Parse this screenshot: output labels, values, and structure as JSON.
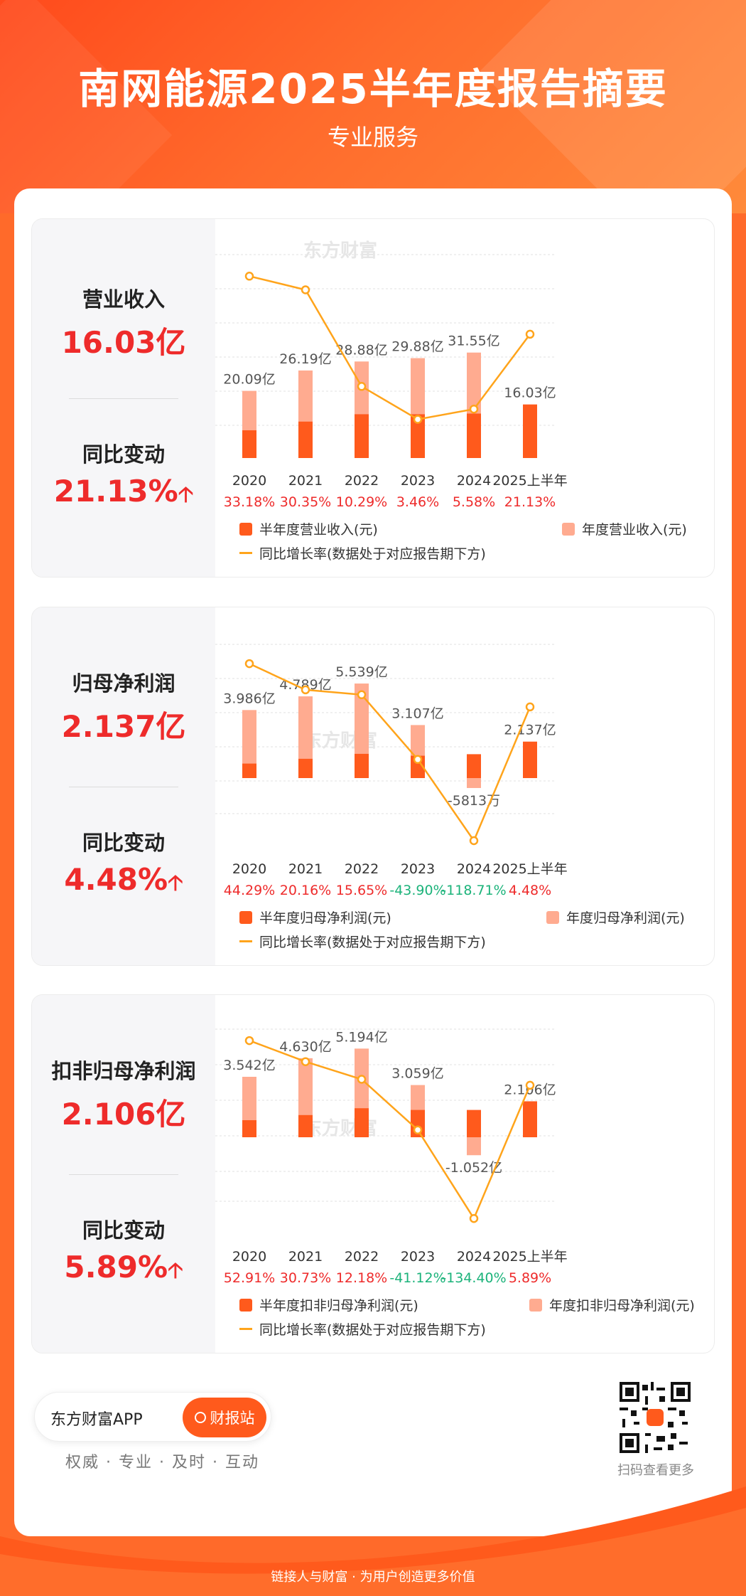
{
  "header": {
    "title": "南网能源2025半年度报告摘要",
    "subtitle": "专业服务"
  },
  "watermark": "东方财富",
  "panels": [
    {
      "metric_label": "营业收入",
      "metric_value": "16.03亿",
      "change_label": "同比变动",
      "change_value": "21.13%",
      "legend": {
        "half": "半年度营业收入(元)",
        "annual": "年度营业收入(元)",
        "line": "同比增长率(数据处于对应报告期下方)"
      }
    },
    {
      "metric_label": "归母净利润",
      "metric_value": "2.137亿",
      "change_label": "同比变动",
      "change_value": "4.48%",
      "legend": {
        "half": "半年度归母净利润(元)",
        "annual": "年度归母净利润(元)",
        "line": "同比增长率(数据处于对应报告期下方)"
      }
    },
    {
      "metric_label": "扣非归母净利润",
      "metric_value": "2.106亿",
      "change_label": "同比变动",
      "change_value": "5.89%",
      "legend": {
        "half": "半年度扣非归母净利润(元)",
        "annual": "年度扣非归母净利润(元)",
        "line": "同比增长率(数据处于对应报告期下方)"
      }
    }
  ],
  "chart_data": [
    {
      "type": "bar",
      "categories": [
        "2020",
        "2021",
        "2022",
        "2023",
        "2024",
        "2025上半年"
      ],
      "annual_values": [
        20.09,
        26.19,
        28.88,
        29.88,
        31.55,
        null
      ],
      "half_values": [
        8.3,
        10.9,
        13.1,
        13.1,
        13.3,
        16.03
      ],
      "annual_labels": [
        "20.09亿",
        "26.19亿",
        "28.88亿",
        "29.88亿",
        "31.55亿",
        "16.03亿"
      ],
      "growth": [
        33.18,
        30.35,
        10.29,
        3.46,
        5.58,
        21.13
      ],
      "growth_labels": [
        "33.18%",
        "30.35%",
        "10.29%",
        "3.46%",
        "5.58%",
        "21.13%"
      ],
      "colors": {
        "half": "#ff5a1c",
        "annual": "#ffab90",
        "line": "#ffa41b",
        "pos": "#ee2b2b",
        "neg": "#1bb37a"
      }
    },
    {
      "type": "bar",
      "categories": [
        "2020",
        "2021",
        "2022",
        "2023",
        "2024",
        "2025上半年"
      ],
      "annual_values": [
        3.986,
        4.789,
        5.539,
        3.107,
        -0.5813,
        null
      ],
      "half_values": [
        0.85,
        1.13,
        1.42,
        1.31,
        1.4,
        2.137
      ],
      "annual_labels": [
        "3.986亿",
        "4.789亿",
        "5.539亿",
        "3.107亿",
        "-5813万",
        "2.137亿"
      ],
      "growth": [
        44.29,
        20.16,
        15.65,
        -43.9,
        -118.71,
        4.48
      ],
      "growth_labels": [
        "44.29%",
        "20.16%",
        "15.65%",
        "-43.90%",
        "-118.71%",
        "4.48%"
      ],
      "colors": {
        "half": "#ff5a1c",
        "annual": "#ffab90",
        "line": "#ffa41b",
        "pos": "#ee2b2b",
        "neg": "#1bb37a"
      }
    },
    {
      "type": "bar",
      "categories": [
        "2020",
        "2021",
        "2022",
        "2023",
        "2024",
        "2025上半年"
      ],
      "annual_values": [
        3.542,
        4.63,
        5.194,
        3.059,
        -1.052,
        null
      ],
      "half_values": [
        1.0,
        1.3,
        1.7,
        1.6,
        1.6,
        2.106
      ],
      "annual_labels": [
        "3.542亿",
        "4.630亿",
        "5.194亿",
        "3.059亿",
        "-1.052亿",
        "2.106亿"
      ],
      "growth": [
        52.91,
        30.73,
        12.18,
        -41.12,
        -134.4,
        5.89
      ],
      "growth_labels": [
        "52.91%",
        "30.73%",
        "12.18%",
        "-41.12%",
        "-134.40%",
        "5.89%"
      ],
      "colors": {
        "half": "#ff5a1c",
        "annual": "#ffab90",
        "line": "#ffa41b",
        "pos": "#ee2b2b",
        "neg": "#1bb37a"
      }
    }
  ],
  "footer": {
    "app_name": "东方财富APP",
    "button_label": "财报站",
    "tagline": "权威 · 专业 · 及时 · 互动",
    "qr_caption": "扫码查看更多",
    "bottom_text": "链接人与财富 · 为用户创造更多价值"
  }
}
